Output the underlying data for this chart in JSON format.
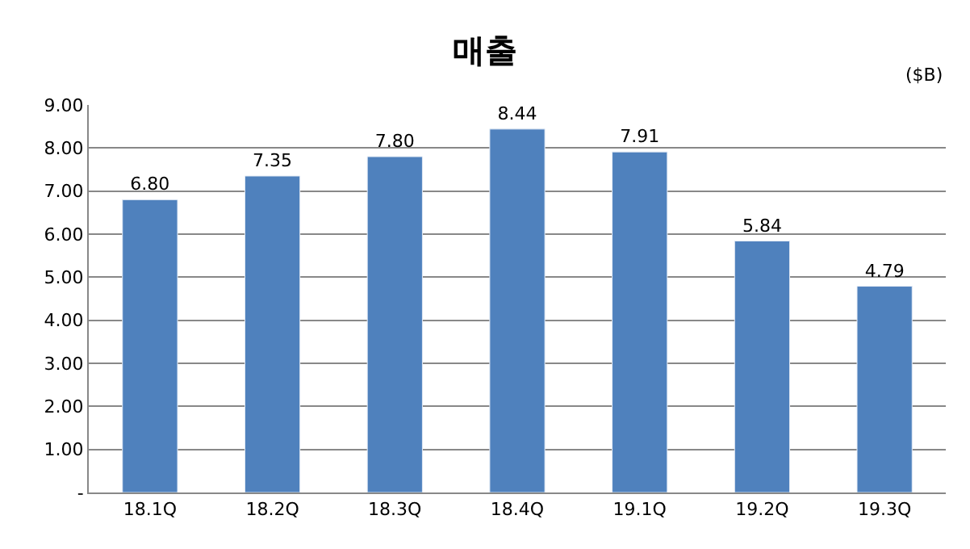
{
  "chart_data": {
    "type": "bar",
    "title": "매출",
    "annotations": [
      "($B)"
    ],
    "categories": [
      "18.1Q",
      "18.2Q",
      "18.3Q",
      "18.4Q",
      "19.1Q",
      "19.2Q",
      "19.3Q"
    ],
    "values": [
      6.8,
      7.35,
      7.8,
      8.44,
      7.91,
      5.84,
      4.79
    ],
    "value_labels": [
      "6.80",
      "7.35",
      "7.80",
      "8.44",
      "7.91",
      "5.84",
      "4.79"
    ],
    "color": "#4f81bd",
    "ylim": [
      0,
      9
    ],
    "yticks": [
      {
        "value": 0,
        "label": "-"
      },
      {
        "value": 1,
        "label": "1.00"
      },
      {
        "value": 2,
        "label": "2.00"
      },
      {
        "value": 3,
        "label": "3.00"
      },
      {
        "value": 4,
        "label": "4.00"
      },
      {
        "value": 5,
        "label": "5.00"
      },
      {
        "value": 6,
        "label": "6.00"
      },
      {
        "value": 7,
        "label": "7.00"
      },
      {
        "value": 8,
        "label": "8.00"
      },
      {
        "value": 9,
        "label": "9.00"
      }
    ],
    "grid": "y"
  }
}
